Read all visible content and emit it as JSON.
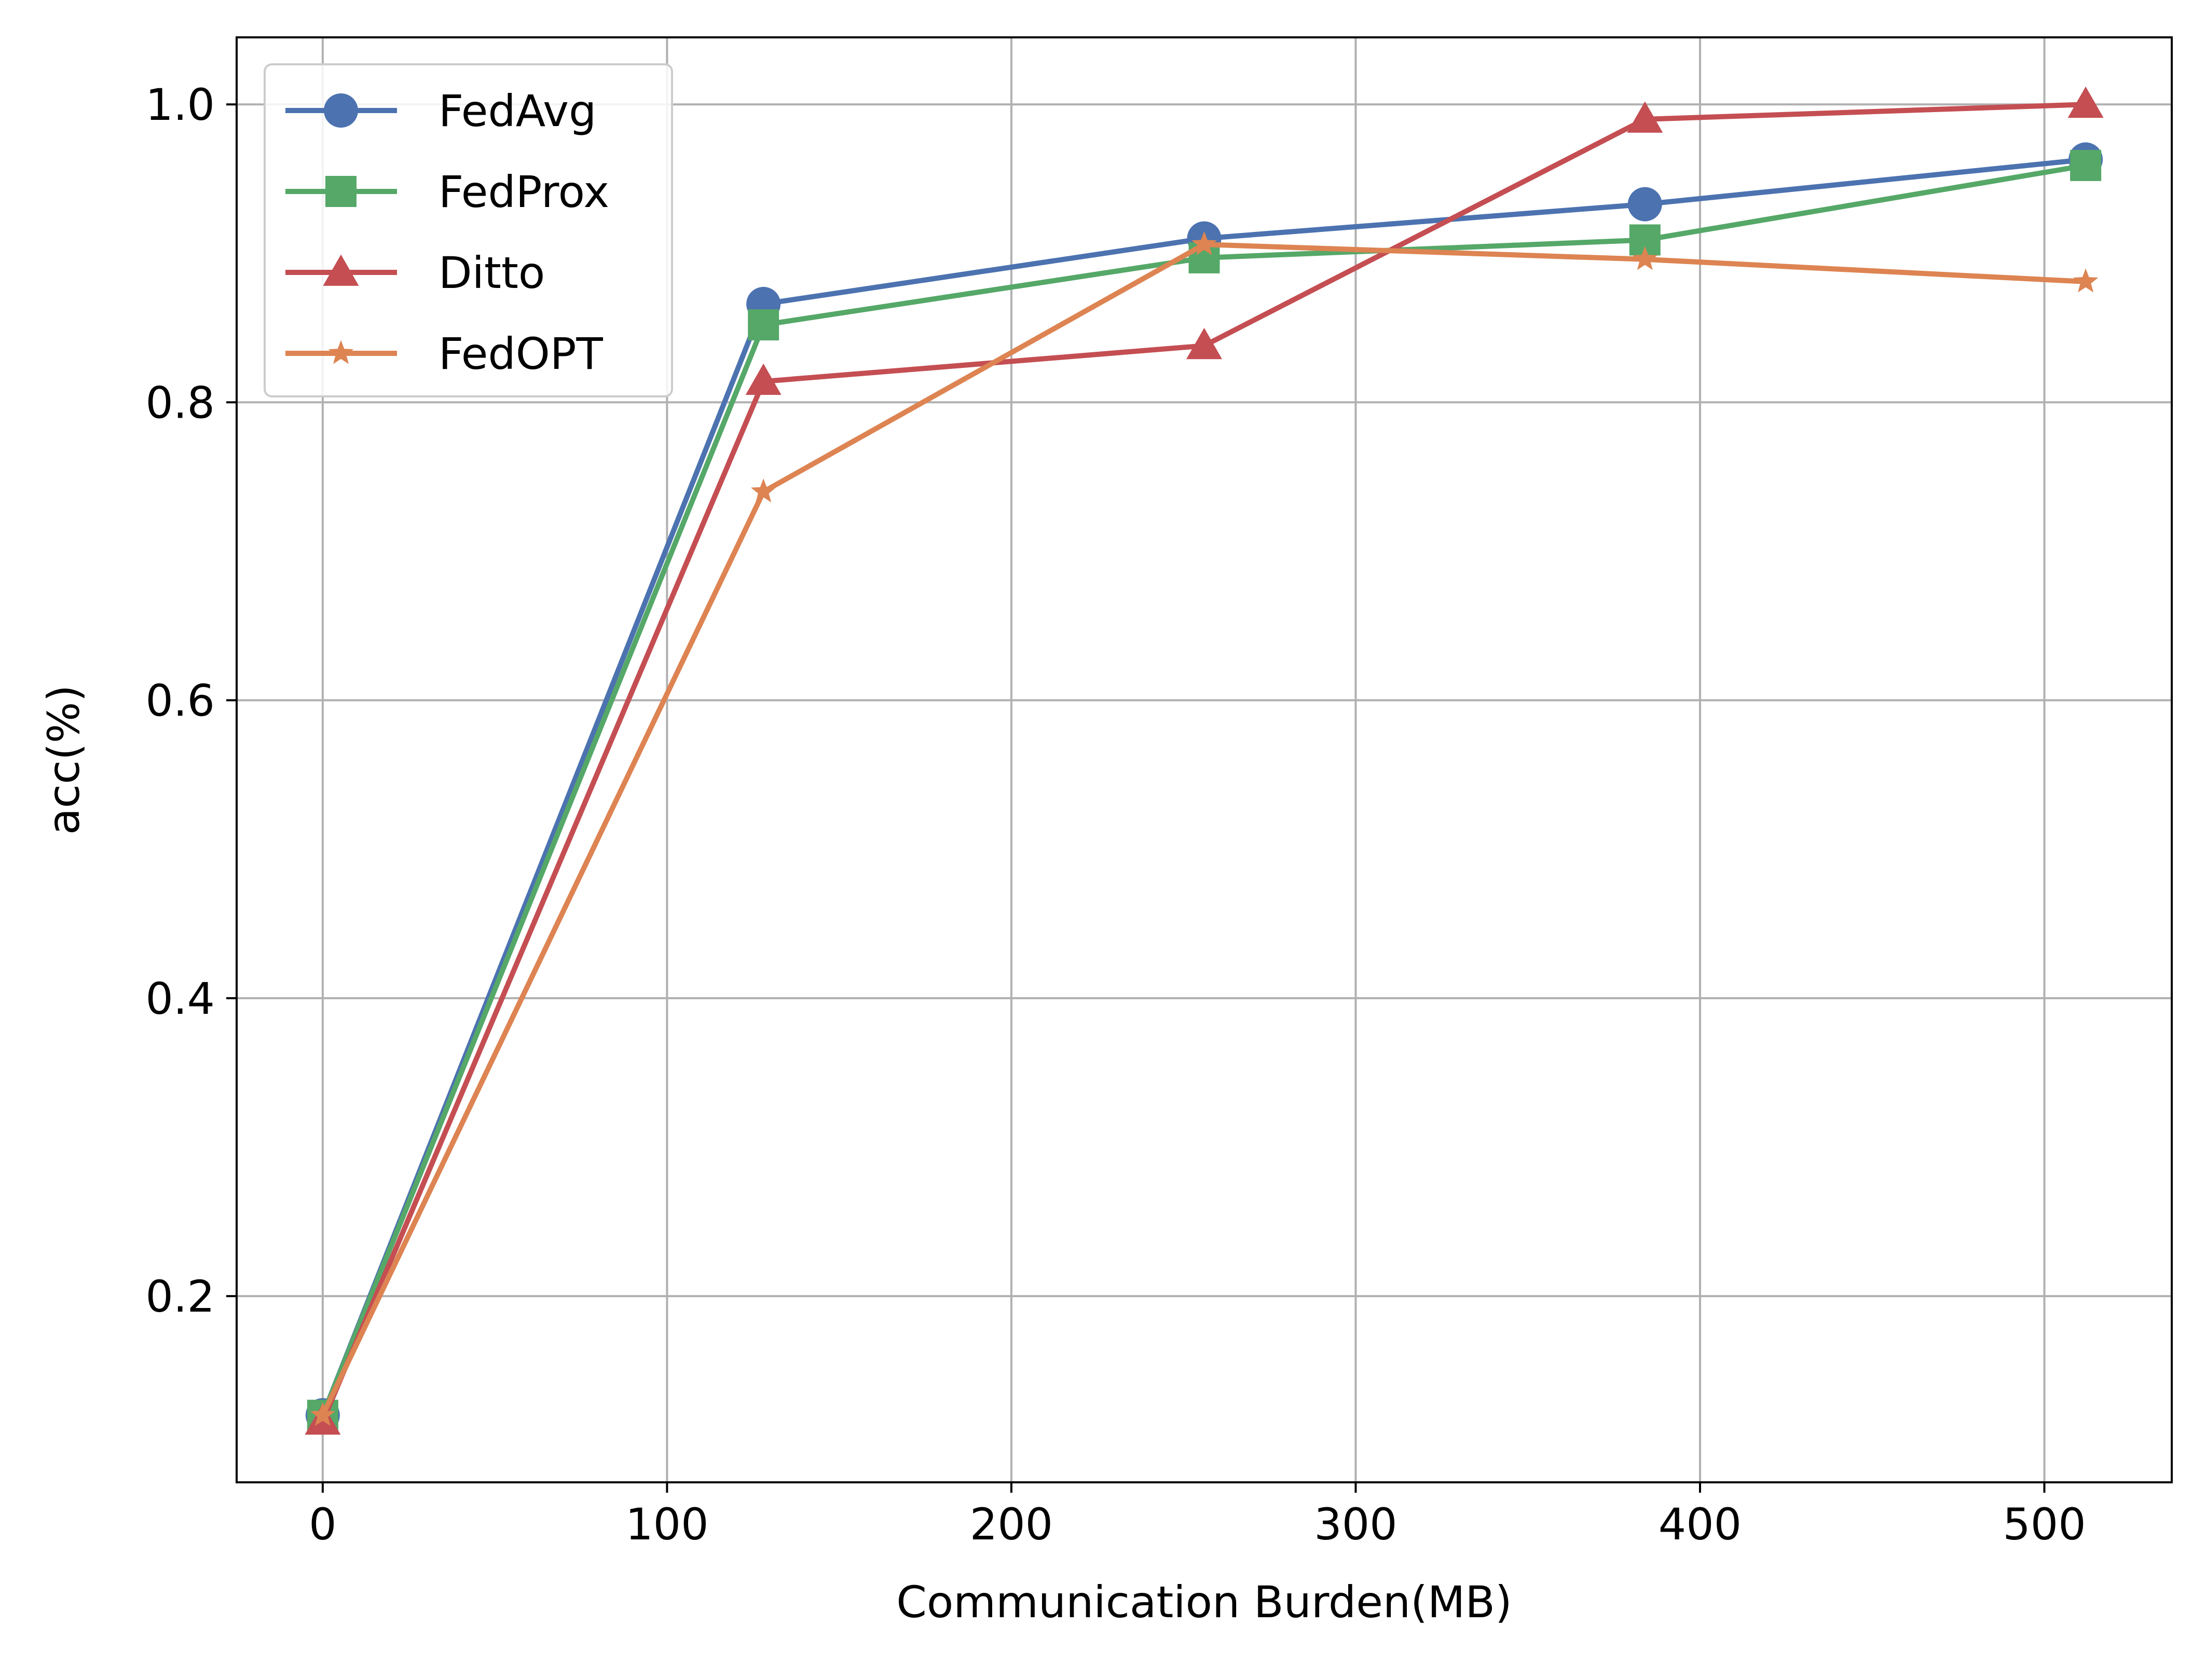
{
  "chart_data": {
    "type": "line",
    "title": "",
    "xlabel": "Communication Burden(MB)",
    "ylabel": "acc(%)",
    "x": [
      0,
      128,
      256,
      384,
      512
    ],
    "xlim": [
      -25,
      537
    ],
    "ylim": [
      0.075,
      1.045
    ],
    "xticks": [
      0,
      100,
      200,
      300,
      400,
      500
    ],
    "xtick_labels": [
      "0",
      "100",
      "200",
      "300",
      "400",
      "500"
    ],
    "yticks": [
      0.2,
      0.4,
      0.6,
      0.8,
      1.0
    ],
    "ytick_labels": [
      "0.2",
      "0.4",
      "0.6",
      "0.8",
      "1.0"
    ],
    "grid": true,
    "legend_position": "top-left",
    "series": [
      {
        "name": "FedAvg",
        "marker": "circle",
        "color": "#4C72B0",
        "values": [
          0.12,
          0.866,
          0.91,
          0.933,
          0.963
        ]
      },
      {
        "name": "FedProx",
        "marker": "square",
        "color": "#55A868",
        "values": [
          0.12,
          0.852,
          0.897,
          0.909,
          0.959
        ]
      },
      {
        "name": "Ditto",
        "marker": "triangle",
        "color": "#C44E52",
        "values": [
          0.116,
          0.814,
          0.838,
          0.99,
          1.0
        ]
      },
      {
        "name": "FedOPT",
        "marker": "star",
        "color": "#DD8452",
        "values": [
          0.12,
          0.74,
          0.906,
          0.896,
          0.881
        ]
      }
    ]
  }
}
